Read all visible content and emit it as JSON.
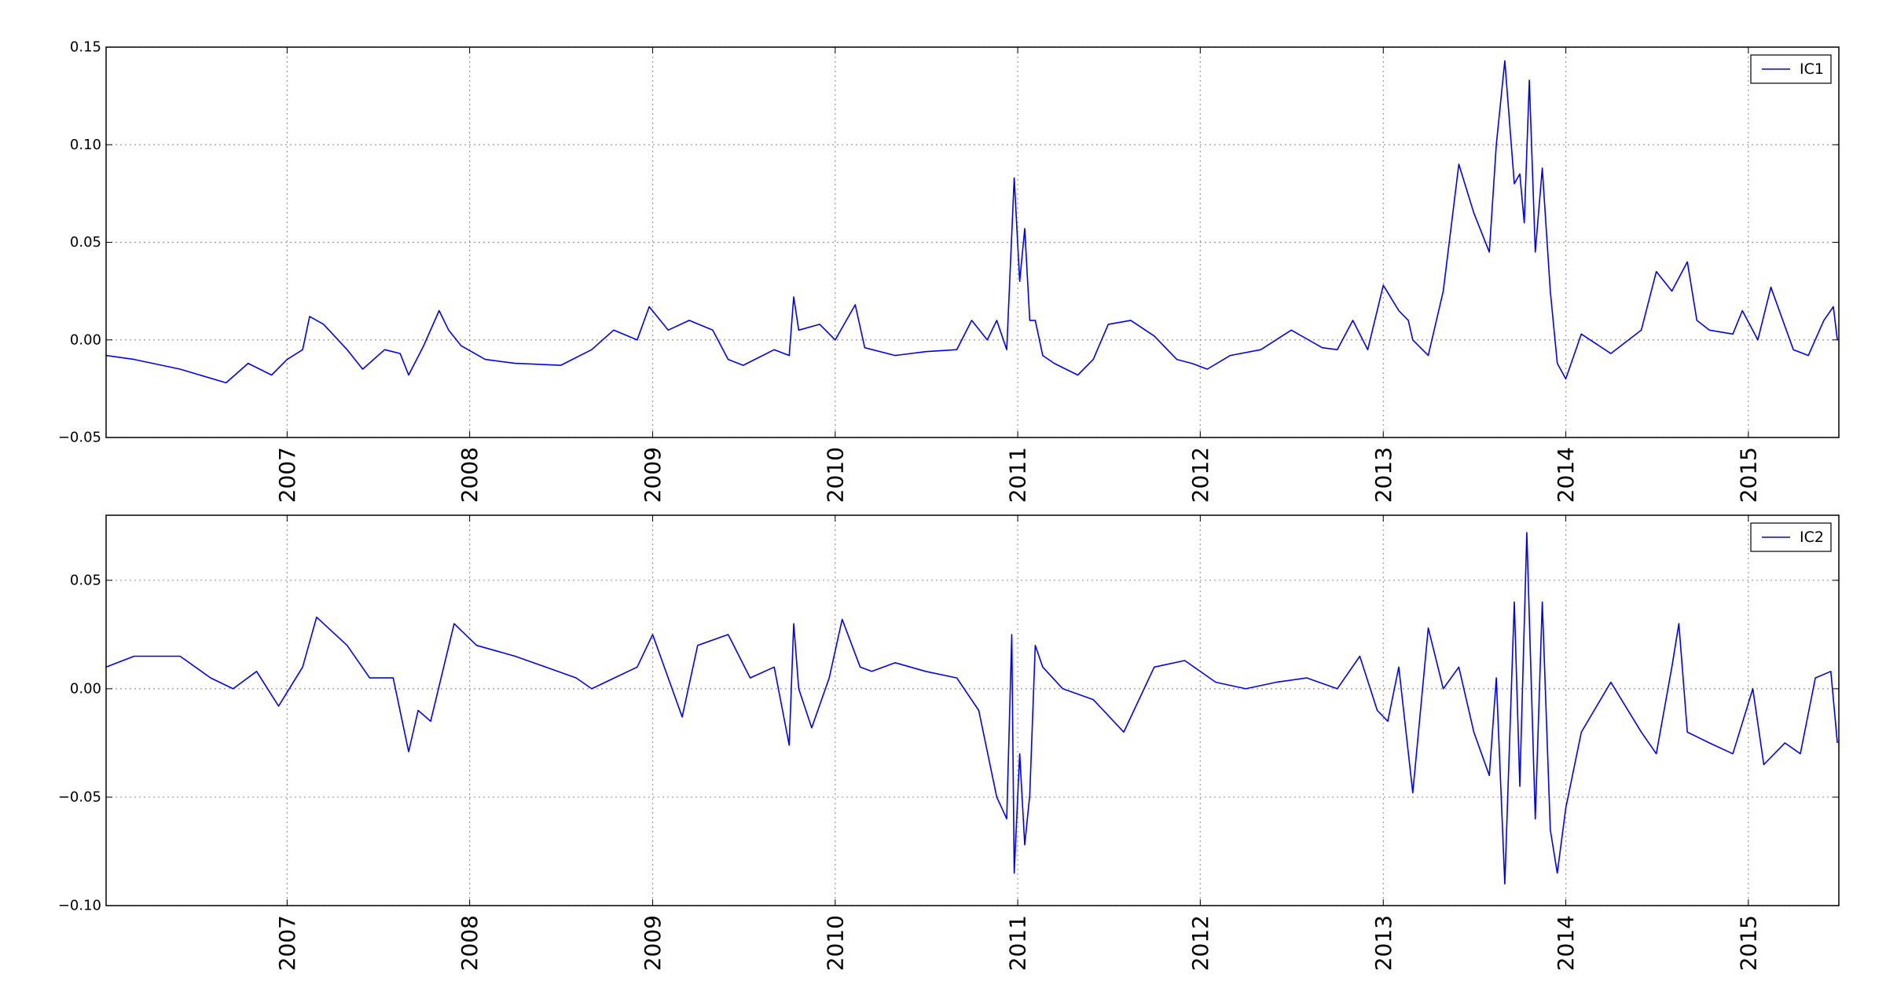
{
  "chart_data": [
    {
      "type": "line",
      "grid": true,
      "legend_position": "top-right",
      "x_axis_type": "date",
      "xlim": [
        "2006-01-04",
        "2015-07-01"
      ],
      "xticks": [
        "2007-01-01",
        "2008-01-01",
        "2009-01-01",
        "2010-01-01",
        "2011-01-01",
        "2012-01-01",
        "2013-01-01",
        "2014-01-01",
        "2015-01-01"
      ],
      "xtick_labels": [
        "2007",
        "2008",
        "2009",
        "2010",
        "2011",
        "2012",
        "2013",
        "2014",
        "2015"
      ],
      "ylim": [
        -0.05,
        0.15
      ],
      "yticks": [
        -0.05,
        0.0,
        0.05,
        0.1,
        0.15
      ],
      "ytick_labels": [
        "−0.05",
        "0.00",
        "0.05",
        "0.10",
        "0.15"
      ],
      "series": [
        {
          "name": "IC1",
          "color": "#0000ff",
          "x": [
            "2006-01-04",
            "2006-03-01",
            "2006-06-01",
            "2006-09-01",
            "2006-10-15",
            "2006-12-01",
            "2007-01-01",
            "2007-02-01",
            "2007-02-15",
            "2007-03-15",
            "2007-05-01",
            "2007-06-01",
            "2007-07-15",
            "2007-08-15",
            "2007-09-01",
            "2007-10-01",
            "2007-11-01",
            "2007-11-20",
            "2007-12-15",
            "2008-02-01",
            "2008-04-01",
            "2008-07-01",
            "2008-09-01",
            "2008-10-15",
            "2008-12-01",
            "2008-12-25",
            "2009-02-01",
            "2009-03-15",
            "2009-05-01",
            "2009-06-01",
            "2009-07-01",
            "2009-09-01",
            "2009-10-01",
            "2009-10-10",
            "2009-10-20",
            "2009-12-01",
            "2010-01-01",
            "2010-02-10",
            "2010-03-01",
            "2010-05-01",
            "2010-07-01",
            "2010-09-01",
            "2010-10-01",
            "2010-11-01",
            "2010-11-20",
            "2010-12-10",
            "2010-12-25",
            "2011-01-05",
            "2011-01-15",
            "2011-01-25",
            "2011-02-05",
            "2011-02-20",
            "2011-03-15",
            "2011-05-01",
            "2011-06-01",
            "2011-07-01",
            "2011-08-15",
            "2011-10-01",
            "2011-11-15",
            "2011-12-15",
            "2012-01-15",
            "2012-03-01",
            "2012-05-01",
            "2012-07-01",
            "2012-09-01",
            "2012-10-01",
            "2012-11-01",
            "2012-12-01",
            "2013-01-01",
            "2013-02-01",
            "2013-02-20",
            "2013-03-01",
            "2013-04-01",
            "2013-05-01",
            "2013-06-01",
            "2013-07-01",
            "2013-08-01",
            "2013-08-15",
            "2013-09-01",
            "2013-09-20",
            "2013-10-01",
            "2013-10-10",
            "2013-10-20",
            "2013-11-01",
            "2013-11-15",
            "2013-12-01",
            "2013-12-15",
            "2014-01-01",
            "2014-02-01",
            "2014-04-01",
            "2014-06-01",
            "2014-07-01",
            "2014-08-01",
            "2014-09-01",
            "2014-09-20",
            "2014-10-15",
            "2014-12-01",
            "2014-12-20",
            "2015-01-20",
            "2015-02-15",
            "2015-04-01",
            "2015-05-01",
            "2015-06-01",
            "2015-06-20",
            "2015-06-28"
          ],
          "y": [
            -0.008,
            -0.01,
            -0.015,
            -0.022,
            -0.012,
            -0.018,
            -0.01,
            -0.005,
            0.012,
            0.008,
            -0.005,
            -0.015,
            -0.005,
            -0.007,
            -0.018,
            -0.003,
            0.015,
            0.005,
            -0.003,
            -0.01,
            -0.012,
            -0.013,
            -0.005,
            0.005,
            0.0,
            0.017,
            0.005,
            0.01,
            0.005,
            -0.01,
            -0.013,
            -0.005,
            -0.008,
            0.022,
            0.005,
            0.008,
            0.0,
            0.018,
            -0.004,
            -0.008,
            -0.006,
            -0.005,
            0.01,
            0.0,
            0.01,
            -0.005,
            0.083,
            0.03,
            0.057,
            0.01,
            0.01,
            -0.008,
            -0.012,
            -0.018,
            -0.01,
            0.008,
            0.01,
            0.002,
            -0.01,
            -0.012,
            -0.015,
            -0.008,
            -0.005,
            0.005,
            -0.004,
            -0.005,
            0.01,
            -0.005,
            0.028,
            0.015,
            0.01,
            0.0,
            -0.008,
            0.025,
            0.09,
            0.065,
            0.045,
            0.1,
            0.143,
            0.08,
            0.085,
            0.06,
            0.133,
            0.045,
            0.088,
            0.025,
            -0.012,
            -0.02,
            0.003,
            -0.007,
            0.005,
            0.035,
            0.025,
            0.04,
            0.01,
            0.005,
            0.003,
            0.015,
            0.0,
            0.027,
            -0.005,
            -0.008,
            0.01,
            0.017,
            0.0
          ]
        }
      ]
    },
    {
      "type": "line",
      "grid": true,
      "legend_position": "top-right",
      "x_axis_type": "date",
      "xlim": [
        "2006-01-04",
        "2015-07-01"
      ],
      "xticks": [
        "2007-01-01",
        "2008-01-01",
        "2009-01-01",
        "2010-01-01",
        "2011-01-01",
        "2012-01-01",
        "2013-01-01",
        "2014-01-01",
        "2015-01-01"
      ],
      "xtick_labels": [
        "2007",
        "2008",
        "2009",
        "2010",
        "2011",
        "2012",
        "2013",
        "2014",
        "2015"
      ],
      "ylim": [
        -0.1,
        0.08
      ],
      "yticks": [
        -0.1,
        -0.05,
        0.0,
        0.05
      ],
      "ytick_labels": [
        "−0.10",
        "−0.05",
        "0.00",
        "0.05"
      ],
      "series": [
        {
          "name": "IC2",
          "color": "#0000ff",
          "x": [
            "2006-01-04",
            "2006-03-01",
            "2006-06-01",
            "2006-08-01",
            "2006-09-15",
            "2006-11-01",
            "2006-12-15",
            "2007-02-01",
            "2007-03-01",
            "2007-05-01",
            "2007-06-15",
            "2007-08-01",
            "2007-09-01",
            "2007-09-20",
            "2007-10-15",
            "2007-12-01",
            "2008-01-15",
            "2008-04-01",
            "2008-06-01",
            "2008-08-01",
            "2008-09-01",
            "2008-12-01",
            "2009-01-01",
            "2009-02-01",
            "2009-03-01",
            "2009-04-01",
            "2009-06-01",
            "2009-07-15",
            "2009-09-01",
            "2009-10-01",
            "2009-10-10",
            "2009-10-20",
            "2009-11-15",
            "2009-12-20",
            "2010-01-15",
            "2010-02-20",
            "2010-03-15",
            "2010-05-01",
            "2010-07-01",
            "2010-09-01",
            "2010-10-15",
            "2010-11-20",
            "2010-12-10",
            "2010-12-20",
            "2010-12-25",
            "2011-01-05",
            "2011-01-15",
            "2011-01-25",
            "2011-02-05",
            "2011-02-20",
            "2011-04-01",
            "2011-06-01",
            "2011-08-01",
            "2011-10-01",
            "2011-12-01",
            "2012-02-01",
            "2012-04-01",
            "2012-06-01",
            "2012-08-01",
            "2012-10-01",
            "2012-11-15",
            "2012-12-20",
            "2013-01-10",
            "2013-02-01",
            "2013-03-01",
            "2013-04-01",
            "2013-05-01",
            "2013-06-01",
            "2013-07-01",
            "2013-08-01",
            "2013-08-15",
            "2013-09-01",
            "2013-09-20",
            "2013-10-01",
            "2013-10-15",
            "2013-11-01",
            "2013-11-15",
            "2013-12-01",
            "2013-12-15",
            "2014-01-01",
            "2014-02-01",
            "2014-04-01",
            "2014-06-01",
            "2014-07-01",
            "2014-08-01",
            "2014-08-15",
            "2014-09-01",
            "2014-10-15",
            "2014-12-01",
            "2015-01-10",
            "2015-02-01",
            "2015-03-15",
            "2015-04-15",
            "2015-05-15",
            "2015-06-15",
            "2015-06-28"
          ],
          "y": [
            0.01,
            0.015,
            0.015,
            0.005,
            0.0,
            0.008,
            -0.008,
            0.01,
            0.033,
            0.02,
            0.005,
            0.005,
            -0.029,
            -0.01,
            -0.015,
            0.03,
            0.02,
            0.015,
            0.01,
            0.005,
            0.0,
            0.01,
            0.025,
            0.005,
            -0.013,
            0.02,
            0.025,
            0.005,
            0.01,
            -0.026,
            0.03,
            0.0,
            -0.018,
            0.005,
            0.032,
            0.01,
            0.008,
            0.012,
            0.008,
            0.005,
            -0.01,
            -0.05,
            -0.06,
            0.025,
            -0.085,
            -0.03,
            -0.072,
            -0.049,
            0.02,
            0.01,
            0.0,
            -0.005,
            -0.02,
            0.01,
            0.013,
            0.003,
            0.0,
            0.003,
            0.005,
            0.0,
            0.015,
            -0.01,
            -0.015,
            0.01,
            -0.048,
            0.028,
            0.0,
            0.01,
            -0.02,
            -0.04,
            0.005,
            -0.09,
            0.04,
            -0.045,
            0.072,
            -0.06,
            0.04,
            -0.065,
            -0.085,
            -0.055,
            -0.02,
            0.003,
            -0.02,
            -0.03,
            0.01,
            0.03,
            -0.02,
            -0.025,
            -0.03,
            0.0,
            -0.035,
            -0.025,
            -0.03,
            0.005,
            0.008,
            -0.025
          ]
        }
      ]
    }
  ]
}
